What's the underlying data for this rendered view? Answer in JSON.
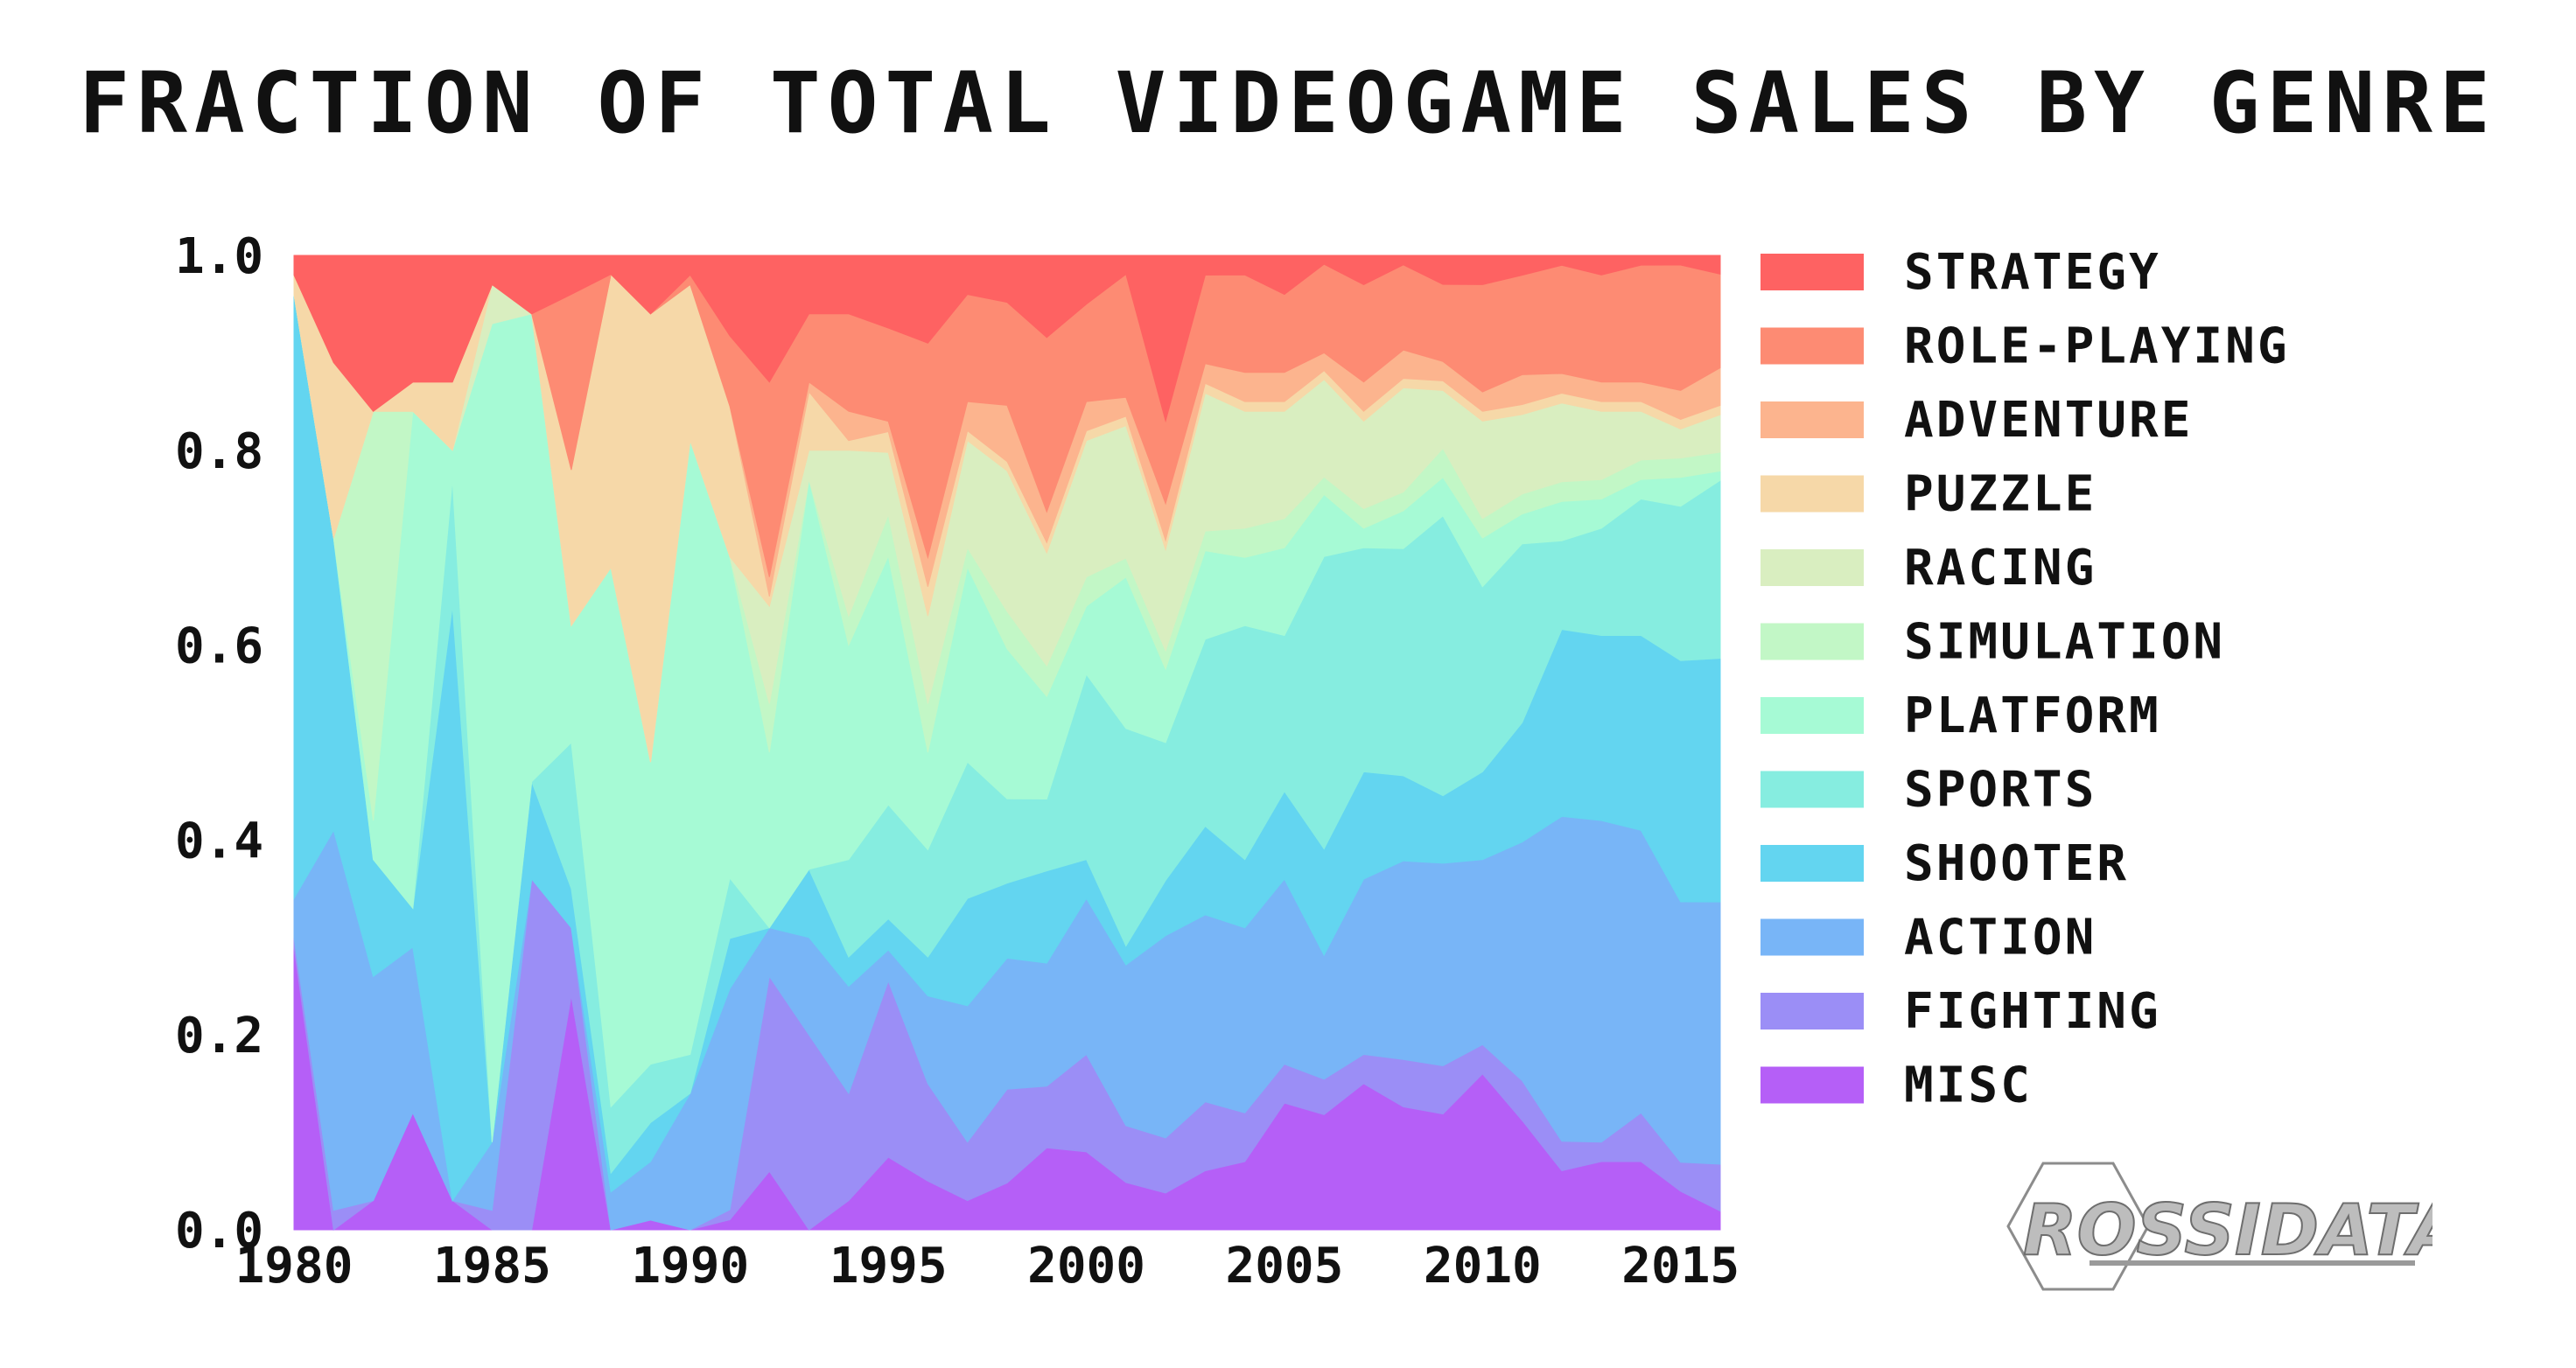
{
  "chart_data": {
    "type": "area",
    "stacked": "normalized",
    "title": "FRACTION OF TOTAL VIDEOGAME SALES BY GENRE",
    "xlabel": "",
    "ylabel": "",
    "xlim": [
      1980,
      2016
    ],
    "ylim": [
      0,
      1
    ],
    "x_ticks": [
      "1980",
      "1985",
      "1990",
      "1995",
      "2000",
      "2005",
      "2010",
      "2015"
    ],
    "y_ticks": [
      "0.0",
      "0.2",
      "0.4",
      "0.6",
      "0.8",
      "1.0"
    ],
    "legend_position": "right",
    "x": [
      1980,
      1981,
      1982,
      1983,
      1984,
      1985,
      1986,
      1987,
      1988,
      1989,
      1990,
      1991,
      1992,
      1993,
      1994,
      1995,
      1996,
      1997,
      1998,
      1999,
      2000,
      2001,
      2002,
      2003,
      2004,
      2005,
      2006,
      2007,
      2008,
      2009,
      2010,
      2011,
      2012,
      2013,
      2014,
      2015,
      2016
    ],
    "series_order_bottom_to_top": [
      "MISC",
      "FIGHTING",
      "ACTION",
      "SHOOTER",
      "SPORTS",
      "PLATFORM",
      "SIMULATION",
      "RACING",
      "PUZZLE",
      "ADVENTURE",
      "ROLE-PLAYING",
      "STRATEGY"
    ],
    "series": [
      {
        "name": "MISC",
        "color": "#b55ff7",
        "values": [
          0.29,
          0.0,
          0.03,
          0.12,
          0.03,
          0.0,
          0.0,
          0.24,
          0.0,
          0.01,
          0.0,
          0.01,
          0.06,
          0.0,
          0.03,
          0.07,
          0.05,
          0.03,
          0.05,
          0.08,
          0.08,
          0.05,
          0.04,
          0.06,
          0.07,
          0.13,
          0.13,
          0.15,
          0.13,
          0.12,
          0.16,
          0.11,
          0.06,
          0.07,
          0.07,
          0.04,
          0.02
        ]
      },
      {
        "name": "FIGHTING",
        "color": "#9b8ef6",
        "values": [
          0.01,
          0.02,
          0.0,
          0.0,
          0.0,
          0.02,
          0.36,
          0.07,
          0.0,
          0.0,
          0.0,
          0.01,
          0.2,
          0.2,
          0.11,
          0.17,
          0.1,
          0.06,
          0.1,
          0.06,
          0.1,
          0.06,
          0.06,
          0.07,
          0.05,
          0.04,
          0.04,
          0.03,
          0.05,
          0.05,
          0.03,
          0.04,
          0.03,
          0.02,
          0.05,
          0.03,
          0.05
        ]
      },
      {
        "name": "ACTION",
        "color": "#78b5f7",
        "values": [
          0.04,
          0.39,
          0.23,
          0.17,
          0.0,
          0.07,
          0.0,
          0.0,
          0.04,
          0.06,
          0.14,
          0.22,
          0.05,
          0.1,
          0.11,
          0.03,
          0.09,
          0.14,
          0.14,
          0.12,
          0.16,
          0.17,
          0.22,
          0.19,
          0.19,
          0.19,
          0.14,
          0.18,
          0.21,
          0.21,
          0.19,
          0.24,
          0.33,
          0.33,
          0.29,
          0.27,
          0.28
        ]
      },
      {
        "name": "SHOOTER",
        "color": "#63d5f0",
        "values": [
          0.62,
          0.3,
          0.12,
          0.04,
          0.61,
          0.0,
          0.1,
          0.04,
          0.02,
          0.04,
          0.0,
          0.05,
          0.0,
          0.07,
          0.03,
          0.03,
          0.04,
          0.11,
          0.08,
          0.09,
          0.04,
          0.02,
          0.06,
          0.09,
          0.07,
          0.09,
          0.12,
          0.11,
          0.09,
          0.07,
          0.09,
          0.12,
          0.19,
          0.19,
          0.2,
          0.25,
          0.26
        ]
      },
      {
        "name": "SPORTS",
        "color": "#86ede0",
        "values": [
          0.0,
          0.0,
          0.0,
          0.0,
          0.13,
          0.0,
          0.0,
          0.15,
          0.07,
          0.06,
          0.04,
          0.06,
          0.0,
          0.0,
          0.1,
          0.11,
          0.11,
          0.14,
          0.09,
          0.07,
          0.19,
          0.23,
          0.15,
          0.19,
          0.24,
          0.16,
          0.33,
          0.23,
          0.24,
          0.29,
          0.19,
          0.18,
          0.09,
          0.11,
          0.14,
          0.16,
          0.19
        ]
      },
      {
        "name": "PLATFORM",
        "color": "#a6fad5",
        "values": [
          0.0,
          0.0,
          0.04,
          0.51,
          0.03,
          0.84,
          0.48,
          0.12,
          0.57,
          0.31,
          0.63,
          0.32,
          0.18,
          0.4,
          0.22,
          0.24,
          0.1,
          0.2,
          0.16,
          0.1,
          0.07,
          0.16,
          0.08,
          0.09,
          0.07,
          0.09,
          0.07,
          0.02,
          0.04,
          0.04,
          0.05,
          0.03,
          0.04,
          0.03,
          0.02,
          0.03,
          0.01
        ]
      },
      {
        "name": "SIMULATION",
        "color": "#c2f7c6",
        "values": [
          0.0,
          0.0,
          0.42,
          0.0,
          0.0,
          0.0,
          0.0,
          0.0,
          0.0,
          0.0,
          0.0,
          0.0,
          0.05,
          0.0,
          0.03,
          0.04,
          0.05,
          0.02,
          0.04,
          0.03,
          0.03,
          0.02,
          0.02,
          0.02,
          0.03,
          0.03,
          0.02,
          0.02,
          0.02,
          0.03,
          0.02,
          0.02,
          0.02,
          0.02,
          0.02,
          0.02,
          0.02
        ]
      },
      {
        "name": "RACING",
        "color": "#d9eec0",
        "values": [
          0.0,
          0.0,
          0.0,
          0.0,
          0.0,
          0.04,
          0.0,
          0.0,
          0.0,
          0.0,
          0.0,
          0.0,
          0.1,
          0.03,
          0.17,
          0.06,
          0.09,
          0.11,
          0.15,
          0.11,
          0.14,
          0.14,
          0.11,
          0.14,
          0.12,
          0.11,
          0.11,
          0.09,
          0.11,
          0.06,
          0.1,
          0.08,
          0.08,
          0.07,
          0.05,
          0.03,
          0.04
        ]
      },
      {
        "name": "PUZZLE",
        "color": "#f6d8a8",
        "values": [
          0.02,
          0.18,
          0.0,
          0.03,
          0.07,
          0.0,
          0.0,
          0.16,
          0.31,
          0.46,
          0.16,
          0.15,
          0.01,
          0.06,
          0.01,
          0.02,
          0.03,
          0.01,
          0.01,
          0.01,
          0.01,
          0.01,
          0.01,
          0.01,
          0.01,
          0.01,
          0.01,
          0.01,
          0.01,
          0.01,
          0.01,
          0.01,
          0.01,
          0.01,
          0.01,
          0.01,
          0.01
        ]
      },
      {
        "name": "ADVENTURE",
        "color": "#fcb48e",
        "values": [
          0.0,
          0.0,
          0.0,
          0.0,
          0.0,
          0.0,
          0.0,
          0.0,
          0.0,
          0.0,
          0.0,
          0.0,
          0.02,
          0.01,
          0.03,
          0.01,
          0.03,
          0.03,
          0.06,
          0.03,
          0.03,
          0.02,
          0.04,
          0.02,
          0.03,
          0.03,
          0.02,
          0.03,
          0.03,
          0.02,
          0.02,
          0.03,
          0.02,
          0.02,
          0.02,
          0.03,
          0.04
        ]
      },
      {
        "name": "ROLE-PLAYING",
        "color": "#fd8b73",
        "values": [
          0.0,
          0.0,
          0.0,
          0.0,
          0.0,
          0.0,
          0.0,
          0.18,
          0.0,
          0.0,
          0.01,
          0.07,
          0.2,
          0.07,
          0.1,
          0.09,
          0.22,
          0.11,
          0.11,
          0.17,
          0.1,
          0.13,
          0.09,
          0.09,
          0.1,
          0.08,
          0.1,
          0.1,
          0.09,
          0.08,
          0.11,
          0.1,
          0.11,
          0.11,
          0.12,
          0.13,
          0.1
        ]
      },
      {
        "name": "STRATEGY",
        "color": "#fe6262",
        "values": [
          0.02,
          0.11,
          0.16,
          0.13,
          0.13,
          0.03,
          0.06,
          0.04,
          0.02,
          0.06,
          0.02,
          0.08,
          0.13,
          0.06,
          0.06,
          0.07,
          0.09,
          0.04,
          0.05,
          0.08,
          0.05,
          0.02,
          0.18,
          0.02,
          0.02,
          0.04,
          0.01,
          0.03,
          0.01,
          0.03,
          0.03,
          0.02,
          0.01,
          0.02,
          0.01,
          0.01,
          0.02
        ]
      }
    ]
  },
  "logo": {
    "text": "ROSSIDATA"
  }
}
